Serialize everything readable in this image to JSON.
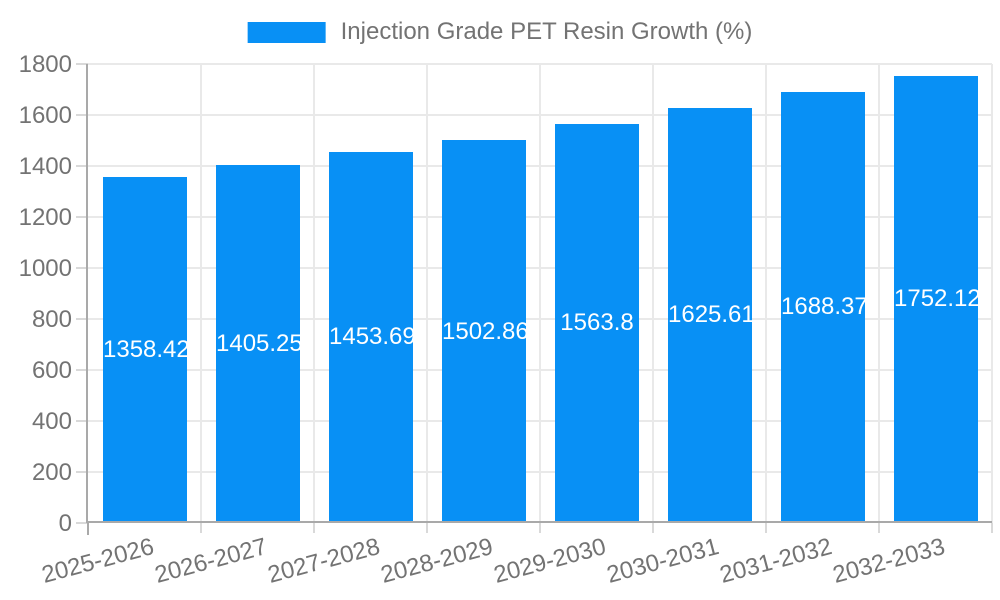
{
  "legend": {
    "label": "Injection Grade PET Resin Growth (%)"
  },
  "chart_data": {
    "type": "bar",
    "title": "Injection Grade PET Resin Growth (%)",
    "legend": [
      "Injection Grade PET Resin Growth (%)"
    ],
    "legend_position": "top-center",
    "categories": [
      "2025-2026",
      "2026-2027",
      "2027-2028",
      "2028-2029",
      "2029-2030",
      "2030-2031",
      "2031-2032",
      "2032-2033"
    ],
    "values": [
      1358.42,
      1405.25,
      1453.69,
      1502.86,
      1563.8,
      1625.61,
      1688.37,
      1752.12
    ],
    "bar_labels": [
      "1358.42",
      "1405.25",
      "1453.69",
      "1502.86",
      "1563.8",
      "1625.61",
      "1688.37",
      "1752.12"
    ],
    "xlabel": "",
    "ylabel": "",
    "ylim": [
      0,
      1800
    ],
    "yticks": [
      0,
      200,
      400,
      600,
      800,
      1000,
      1200,
      1400,
      1600,
      1800
    ],
    "grid": true,
    "x_label_rotation_deg": -15,
    "colors": {
      "bar": "#0890F5",
      "grid_line": "#e9e9e9",
      "axis_line": "#a9a9a9",
      "tick_mark": "#d9d9d9",
      "tick_text": "#737373",
      "bar_label_text": "#ffffff",
      "legend_text": "#737373"
    }
  }
}
